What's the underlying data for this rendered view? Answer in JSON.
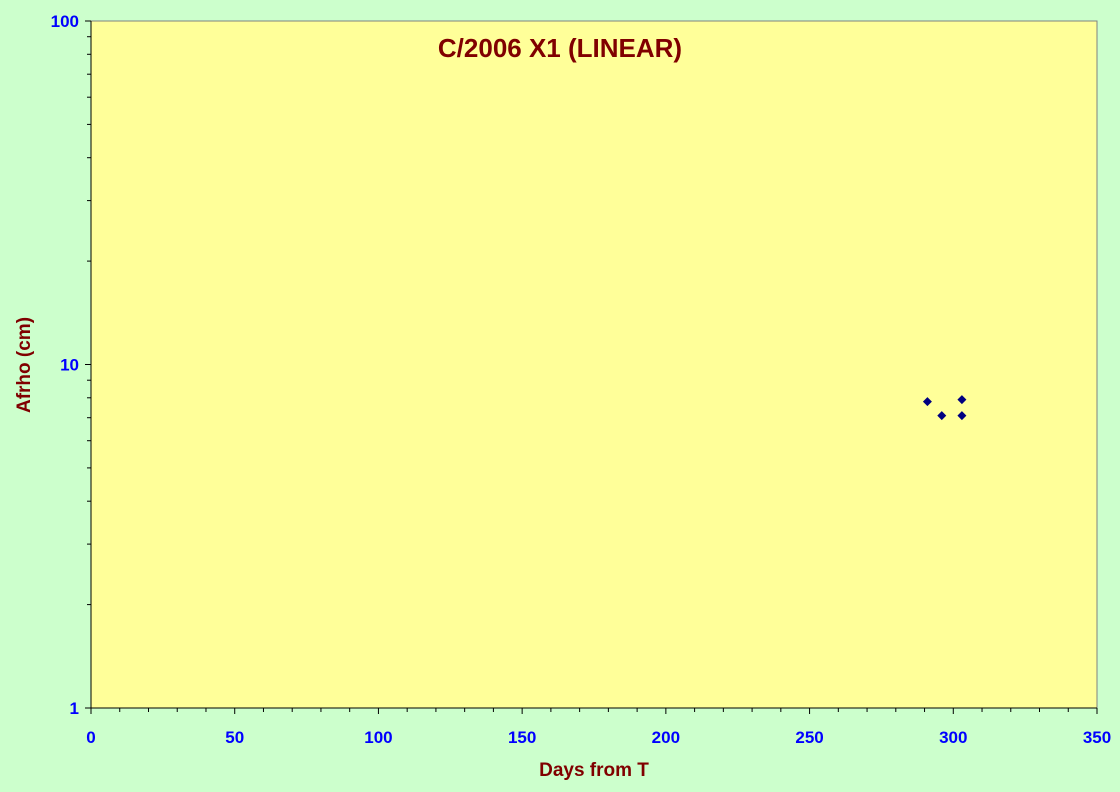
{
  "chart_data": {
    "type": "scatter",
    "title": "C/2006 X1 (LINEAR)",
    "xlabel": "Days from T",
    "ylabel": "Afrho (cm)",
    "xlim": [
      0,
      350
    ],
    "ylim": [
      1,
      100
    ],
    "yscale": "log",
    "xticks": [
      0,
      50,
      100,
      150,
      200,
      250,
      300,
      350
    ],
    "yticks": [
      1,
      10,
      100
    ],
    "grid": false,
    "legend": "none",
    "series": [
      {
        "points": [
          {
            "x": 291,
            "y": 7.8
          },
          {
            "x": 296,
            "y": 7.1
          },
          {
            "x": 303,
            "y": 7.9
          },
          {
            "x": 303,
            "y": 7.1
          }
        ]
      }
    ]
  },
  "colors": {
    "page_background": "#ccffcc",
    "plot_background": "#ffff99",
    "marker": "#000080",
    "title_text": "#800000",
    "tick_text": "#0000ff"
  }
}
